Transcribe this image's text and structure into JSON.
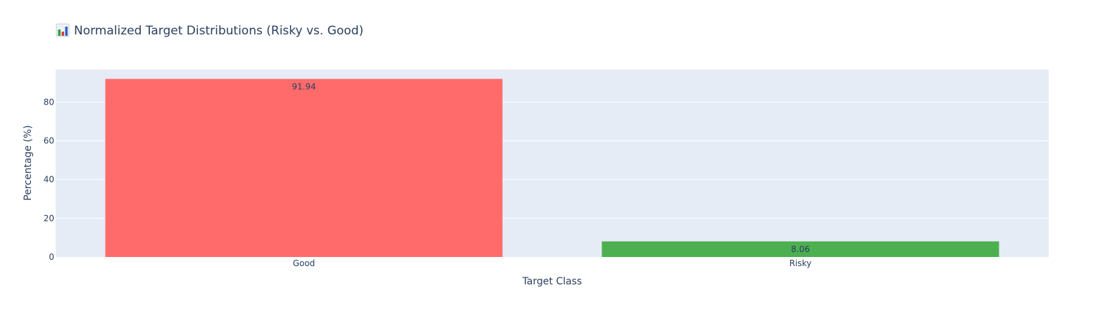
{
  "chart_data": {
    "type": "bar",
    "title": "Normalized Target Distributions (Risky vs. Good)",
    "title_icon": "bar-chart-emoji-icon",
    "xlabel": "Target Class",
    "ylabel": "Percentage (%)",
    "categories": [
      "Good",
      "Risky"
    ],
    "values": [
      91.94,
      8.06
    ],
    "data_labels": [
      "91.94",
      "8.06"
    ],
    "bar_colors": [
      "#ff6b6b",
      "#4caf50"
    ],
    "ylim": [
      0,
      96.78
    ],
    "yticks": [
      0,
      20,
      40,
      60,
      80
    ],
    "ytick_labels": [
      "0",
      "20",
      "40",
      "60",
      "80"
    ],
    "grid": true,
    "plot_bg": "#e5ecf6",
    "grid_color": "#ffffff",
    "text_color": "#2a3f5f",
    "legend": false
  }
}
